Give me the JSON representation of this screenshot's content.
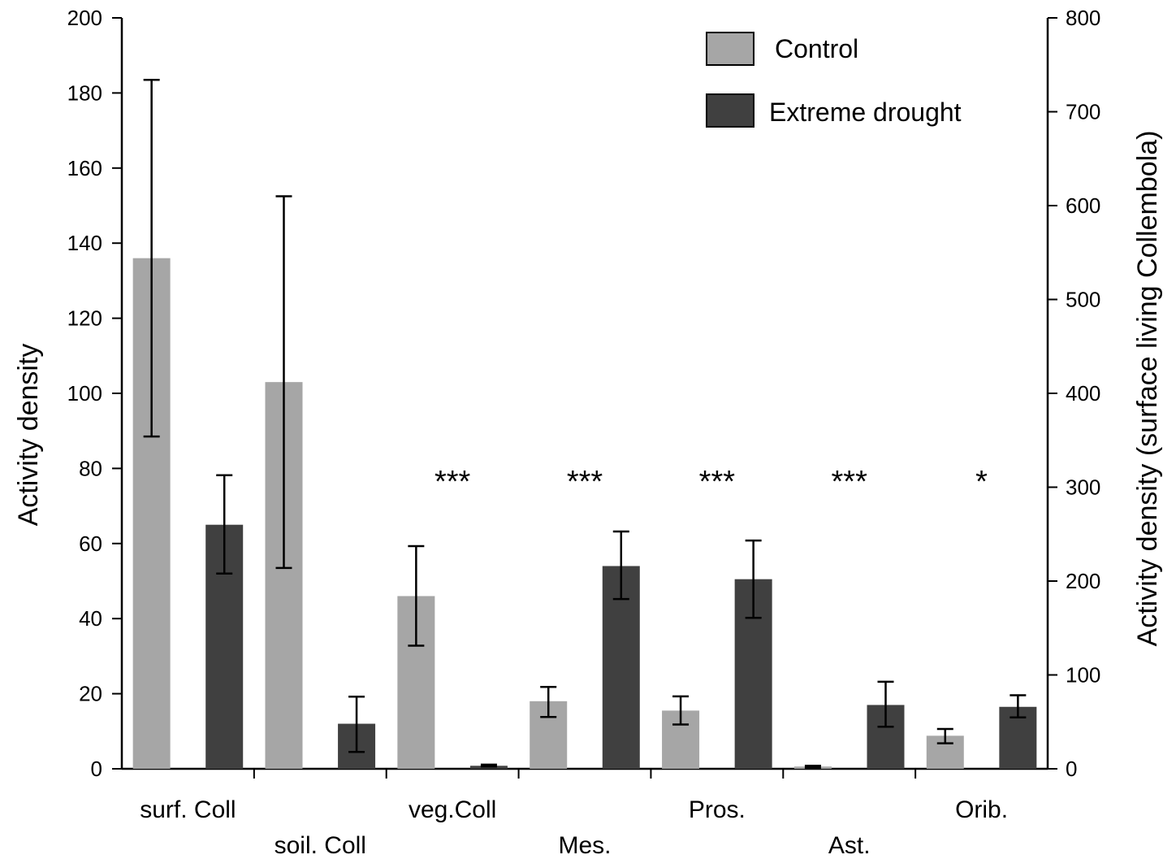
{
  "chart_data": {
    "type": "bar",
    "ylabel": "Activity density",
    "ylabel_right": "Activity density (surface living Collembola)",
    "ylim": [
      0,
      200
    ],
    "ylim_right": [
      0,
      800
    ],
    "yticks": [
      0,
      20,
      40,
      60,
      80,
      100,
      120,
      140,
      160,
      180,
      200
    ],
    "yticks_right": [
      0,
      100,
      200,
      300,
      400,
      500,
      600,
      700,
      800
    ],
    "categories": [
      "surf. Coll",
      "soil. Coll",
      "veg.Coll",
      "Mes.",
      "Pros.",
      "Ast.",
      "Orib."
    ],
    "series": [
      {
        "name": "Control",
        "color": "#a6a6a6",
        "values": [
          136,
          103,
          46,
          18,
          15.5,
          0.6,
          8.8
        ],
        "err_low": [
          88.5,
          53.5,
          32.8,
          13.8,
          11.8,
          0.3,
          6.8
        ],
        "err_high": [
          183.5,
          152.5,
          59.3,
          21.8,
          19.3,
          0.8,
          10.6
        ]
      },
      {
        "name": "Extreme drought",
        "color": "#404040",
        "values": [
          65,
          12,
          0.8,
          54,
          50.5,
          17,
          16.5
        ],
        "err_low": [
          52,
          4.5,
          0.6,
          45.2,
          40.2,
          11.2,
          13.7
        ],
        "err_high": [
          78.2,
          19.2,
          1.1,
          63.2,
          60.8,
          23.2,
          19.6
        ]
      }
    ],
    "significance": [
      "",
      "",
      "***",
      "***",
      "***",
      "***",
      "*"
    ],
    "legend_position": "top-right",
    "grid": false
  }
}
